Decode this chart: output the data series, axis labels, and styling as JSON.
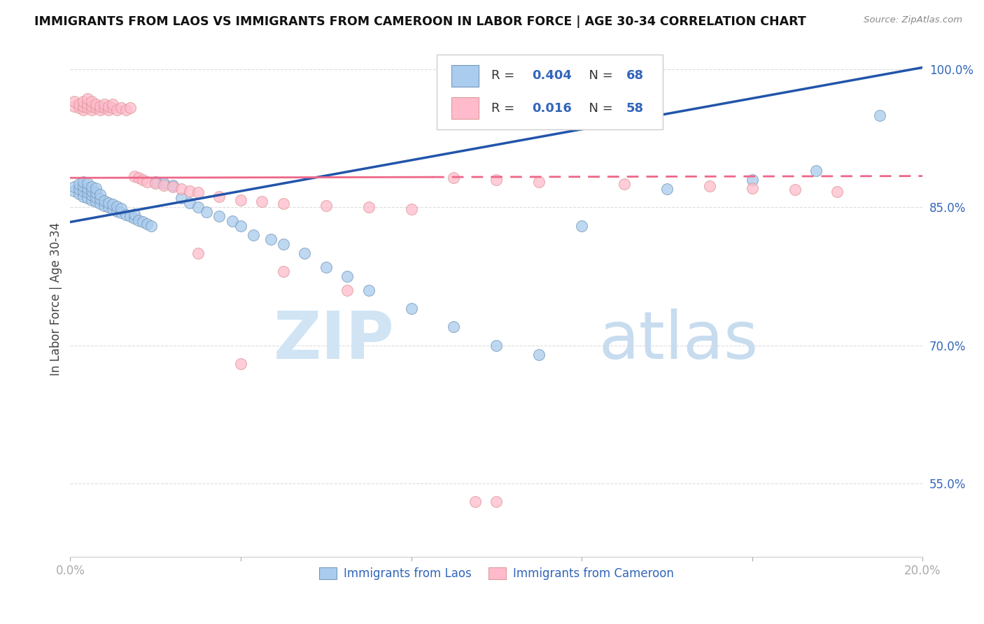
{
  "title": "IMMIGRANTS FROM LAOS VS IMMIGRANTS FROM CAMEROON IN LABOR FORCE | AGE 30-34 CORRELATION CHART",
  "source": "Source: ZipAtlas.com",
  "ylabel": "In Labor Force | Age 30-34",
  "xlim": [
    0.0,
    0.2
  ],
  "ylim": [
    0.47,
    1.03
  ],
  "yticks": [
    0.55,
    0.7,
    0.85,
    1.0
  ],
  "ytick_labels": [
    "55.0%",
    "70.0%",
    "85.0%",
    "100.0%"
  ],
  "xticks": [
    0.0,
    0.04,
    0.08,
    0.12,
    0.16,
    0.2
  ],
  "xtick_labels": [
    "0.0%",
    "",
    "",
    "",
    "",
    "20.0%"
  ],
  "blue_face": "#AACCEE",
  "blue_edge": "#7799BB",
  "pink_face": "#FFBBCC",
  "pink_edge": "#DD9999",
  "line_blue": "#2255AA",
  "line_pink": "#EE6688",
  "watermark_zip_color": "#D0E4F4",
  "watermark_atlas_color": "#C8DCEF",
  "legend_box_edge": "#CCCCCC",
  "text_color_dark": "#333333",
  "text_color_blue": "#3366BB",
  "grid_color": "#DDDDDD",
  "laos_x": [
    0.001,
    0.001,
    0.002,
    0.002,
    0.002,
    0.003,
    0.003,
    0.003,
    0.003,
    0.004,
    0.004,
    0.004,
    0.004,
    0.005,
    0.005,
    0.005,
    0.005,
    0.006,
    0.006,
    0.006,
    0.006,
    0.007,
    0.007,
    0.007,
    0.008,
    0.008,
    0.009,
    0.009,
    0.01,
    0.01,
    0.011,
    0.011,
    0.012,
    0.012,
    0.013,
    0.014,
    0.015,
    0.015,
    0.016,
    0.017,
    0.018,
    0.019,
    0.02,
    0.022,
    0.024,
    0.026,
    0.028,
    0.03,
    0.032,
    0.035,
    0.038,
    0.04,
    0.043,
    0.047,
    0.05,
    0.055,
    0.06,
    0.065,
    0.07,
    0.08,
    0.09,
    0.1,
    0.11,
    0.12,
    0.14,
    0.16,
    0.175,
    0.19
  ],
  "laos_y": [
    0.868,
    0.872,
    0.865,
    0.87,
    0.875,
    0.862,
    0.868,
    0.873,
    0.878,
    0.86,
    0.866,
    0.871,
    0.876,
    0.858,
    0.863,
    0.868,
    0.872,
    0.856,
    0.861,
    0.866,
    0.871,
    0.854,
    0.859,
    0.864,
    0.852,
    0.857,
    0.85,
    0.855,
    0.848,
    0.853,
    0.846,
    0.851,
    0.844,
    0.849,
    0.842,
    0.84,
    0.838,
    0.843,
    0.836,
    0.834,
    0.832,
    0.83,
    0.878,
    0.876,
    0.874,
    0.86,
    0.855,
    0.85,
    0.845,
    0.84,
    0.835,
    0.83,
    0.82,
    0.815,
    0.81,
    0.8,
    0.785,
    0.775,
    0.76,
    0.74,
    0.72,
    0.7,
    0.69,
    0.83,
    0.87,
    0.88,
    0.89,
    0.95
  ],
  "cameroon_x": [
    0.001,
    0.001,
    0.002,
    0.002,
    0.003,
    0.003,
    0.003,
    0.004,
    0.004,
    0.004,
    0.005,
    0.005,
    0.005,
    0.006,
    0.006,
    0.007,
    0.007,
    0.008,
    0.008,
    0.009,
    0.009,
    0.01,
    0.01,
    0.011,
    0.012,
    0.013,
    0.014,
    0.015,
    0.016,
    0.017,
    0.018,
    0.02,
    0.022,
    0.024,
    0.026,
    0.028,
    0.03,
    0.035,
    0.04,
    0.045,
    0.05,
    0.06,
    0.07,
    0.08,
    0.09,
    0.1,
    0.11,
    0.13,
    0.15,
    0.16,
    0.17,
    0.18,
    0.03,
    0.05,
    0.065,
    0.04,
    0.095,
    0.1
  ],
  "cameroon_y": [
    0.96,
    0.965,
    0.958,
    0.962,
    0.956,
    0.96,
    0.965,
    0.958,
    0.963,
    0.968,
    0.956,
    0.96,
    0.965,
    0.958,
    0.962,
    0.956,
    0.96,
    0.958,
    0.962,
    0.956,
    0.96,
    0.958,
    0.962,
    0.956,
    0.958,
    0.956,
    0.958,
    0.884,
    0.882,
    0.88,
    0.878,
    0.876,
    0.874,
    0.872,
    0.87,
    0.868,
    0.866,
    0.862,
    0.858,
    0.856,
    0.854,
    0.852,
    0.85,
    0.848,
    0.882,
    0.88,
    0.878,
    0.875,
    0.873,
    0.871,
    0.869,
    0.867,
    0.8,
    0.78,
    0.76,
    0.68,
    0.53,
    0.53
  ]
}
